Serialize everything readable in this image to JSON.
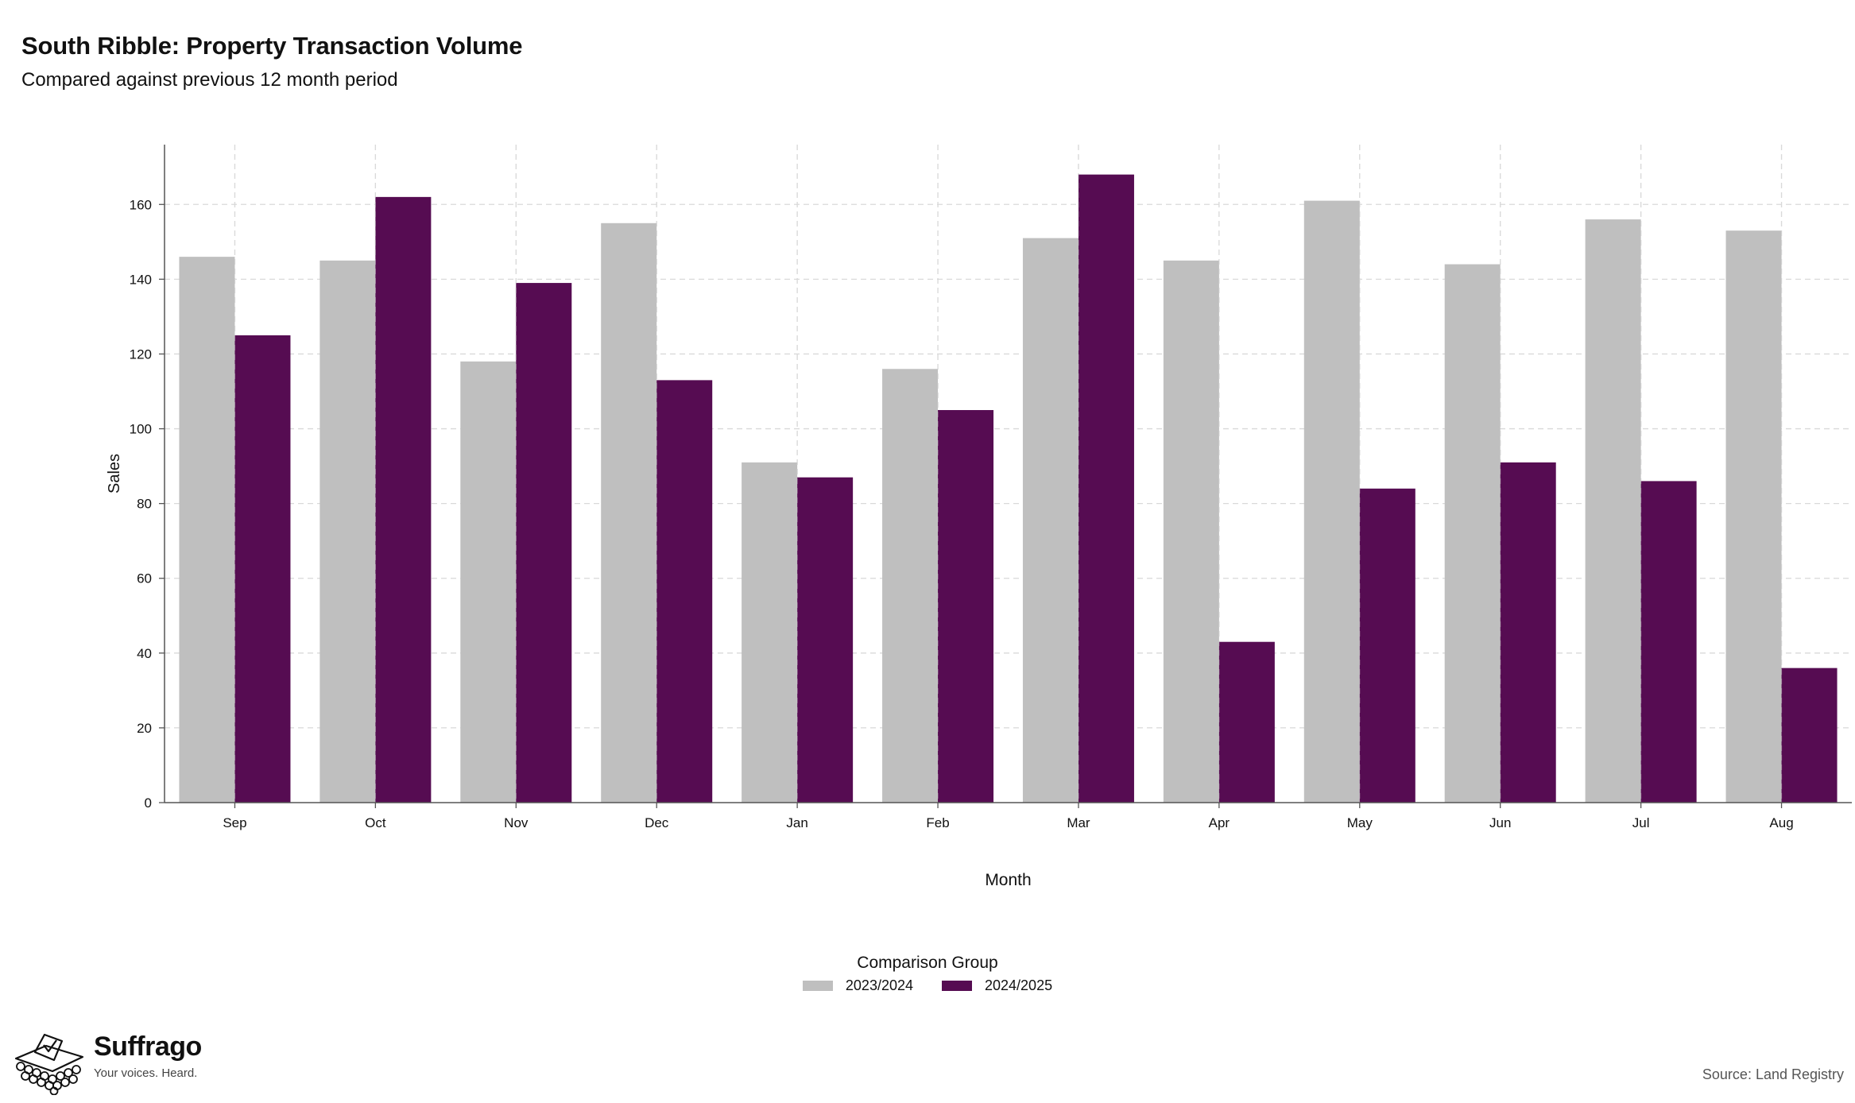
{
  "header": {
    "title": "South Ribble: Property Transaction Volume",
    "subtitle": "Compared against previous 12 month period"
  },
  "chart_data": {
    "type": "bar",
    "title": "South Ribble: Property Transaction Volume",
    "subtitle": "Compared against previous 12 month period",
    "xlabel": "Month",
    "ylabel": "Sales",
    "ylim": [
      0,
      176
    ],
    "yticks": [
      0,
      20,
      40,
      60,
      80,
      100,
      120,
      140,
      160
    ],
    "grid": true,
    "legend_position": "bottom",
    "legend_title": "Comparison Group",
    "categories": [
      "Sep",
      "Oct",
      "Nov",
      "Dec",
      "Jan",
      "Feb",
      "Mar",
      "Apr",
      "May",
      "Jun",
      "Jul",
      "Aug"
    ],
    "series": [
      {
        "name": "2023/2024",
        "color": "#bfbfbf",
        "values": [
          146,
          145,
          118,
          155,
          91,
          116,
          151,
          145,
          161,
          144,
          156,
          153
        ]
      },
      {
        "name": "2024/2025",
        "color": "#560c52",
        "values": [
          125,
          162,
          139,
          113,
          87,
          105,
          168,
          43,
          84,
          91,
          86,
          36
        ]
      }
    ]
  },
  "branding": {
    "name": "Suffrago",
    "tagline": "Your voices. Heard.",
    "icon": "ballot-box-icon"
  },
  "footer": {
    "source": "Source: Land Registry"
  }
}
